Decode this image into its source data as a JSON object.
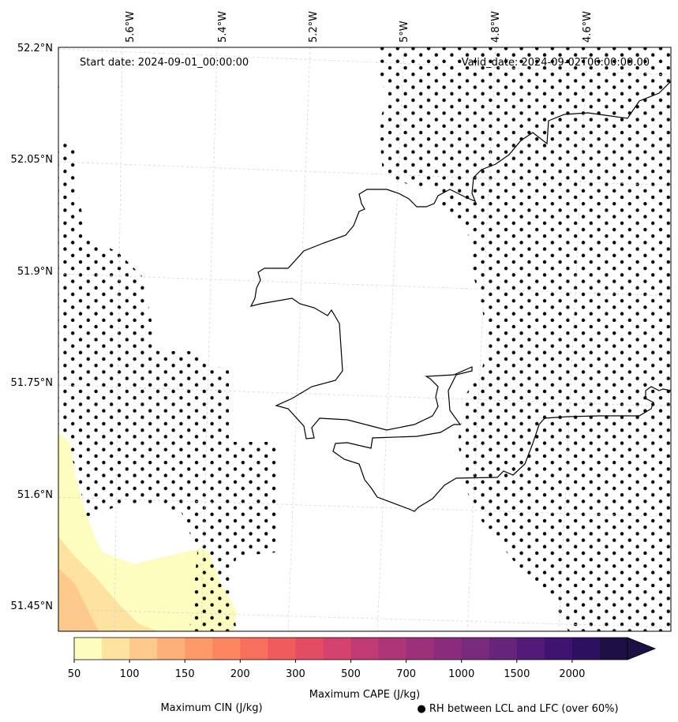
{
  "map": {
    "start_label": "Start date: 2024-09-01_00:00:00",
    "valid_label": "Valid_date: 2024-09-02T06:00:00.00",
    "lon_labels": [
      "5.6°W",
      "5.4°W",
      "5.2°W",
      "5°W",
      "4.8°W",
      "4.6°W"
    ],
    "lat_labels": [
      "52.2°N",
      "52.05°N",
      "51.9°N",
      "51.75°N",
      "51.6°N",
      "51.45°N"
    ]
  },
  "colorbar": {
    "title": "Maximum CAPE (J/kg)",
    "tick_labels": [
      "50",
      "100",
      "150",
      "200",
      "300",
      "500",
      "700",
      "1000",
      "1500",
      "2000"
    ],
    "colors": [
      "#fcfdbf",
      "#fde2a0",
      "#fec98d",
      "#feb07a",
      "#fe9a6a",
      "#fb8660",
      "#f7705c",
      "#f05c5e",
      "#e24d63",
      "#d3436e",
      "#c03b73",
      "#ae3677",
      "#9c3179",
      "#8a2c7b",
      "#782a7c",
      "#66257b",
      "#531b77",
      "#3f1470",
      "#2d1160",
      "#1c1044"
    ],
    "extend": "max"
  },
  "legend": {
    "cin_label": "Maximum CIN (J/kg)",
    "cin_color": "#ff0000",
    "rh_label": "● RH between LCL and LFC (over 60%)"
  }
}
